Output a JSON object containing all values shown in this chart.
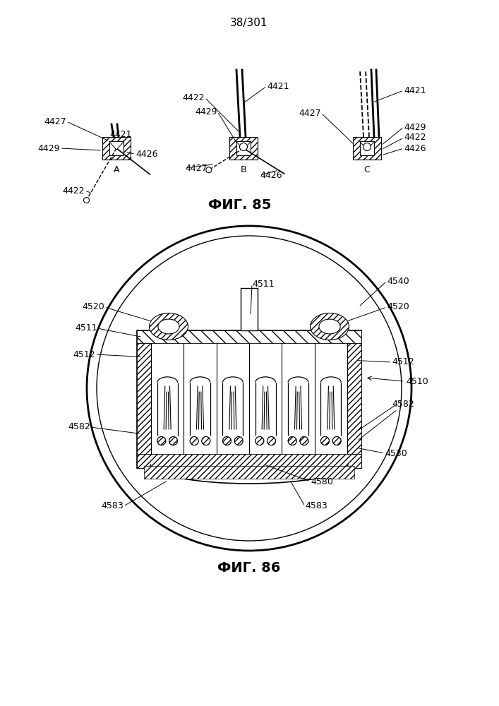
{
  "page_label": "38/301",
  "fig85_label": "ФИГ. 85",
  "fig86_label": "ФИГ. 86",
  "bg_color": "#ffffff",
  "line_color": "#000000",
  "font_size_label": 9,
  "font_size_fig": 14,
  "font_size_page": 11
}
